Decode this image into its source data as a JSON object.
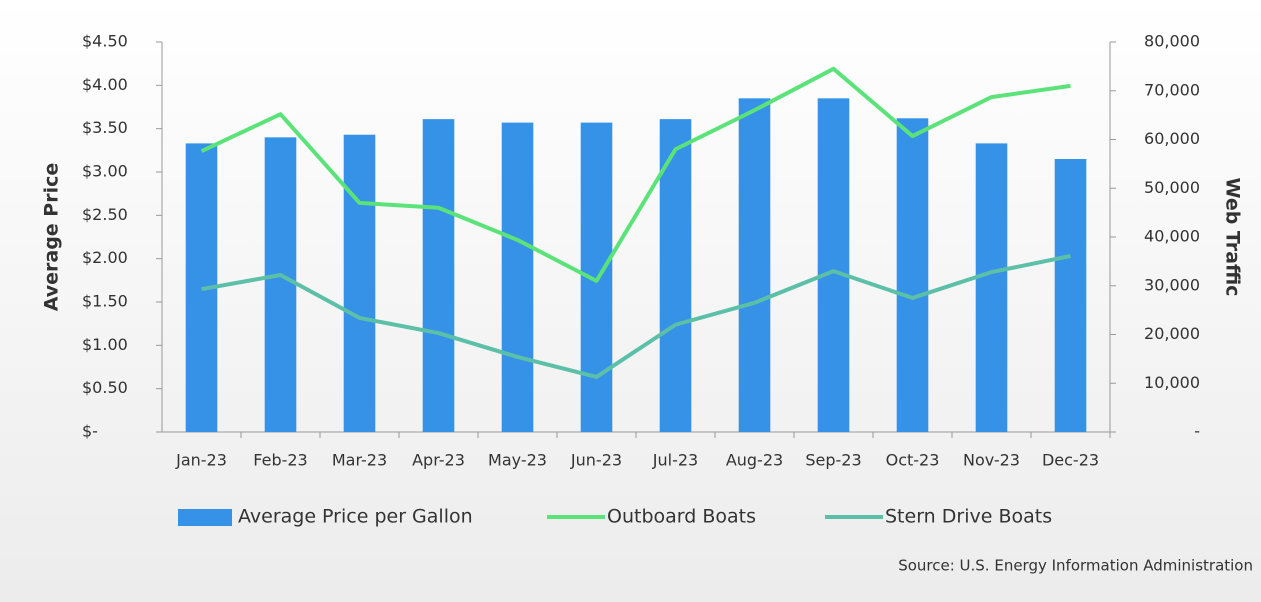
{
  "chart_data": {
    "type": "combo",
    "categories": [
      "Jan-23",
      "Feb-23",
      "Mar-23",
      "Apr-23",
      "May-23",
      "Jun-23",
      "Jul-23",
      "Aug-23",
      "Sep-23",
      "Oct-23",
      "Nov-23",
      "Dec-23"
    ],
    "series": [
      {
        "name": "Average Price per Gallon",
        "type": "bar",
        "color": "#3592e6",
        "axis": "y",
        "values": [
          3.33,
          3.4,
          3.43,
          3.61,
          3.57,
          3.57,
          3.61,
          3.85,
          3.85,
          3.62,
          3.33,
          3.15
        ]
      },
      {
        "name": "Outboard Boats",
        "type": "line",
        "color": "#5be37a",
        "axis": "y2",
        "values": [
          57600,
          65200,
          47000,
          46000,
          39400,
          31000,
          58000,
          66000,
          74500,
          60700,
          68700,
          71000
        ]
      },
      {
        "name": "Stern Drive Boats",
        "type": "line",
        "color": "#5cbfa8",
        "axis": "y2",
        "values": [
          29300,
          32200,
          23400,
          20300,
          15400,
          11300,
          22000,
          26500,
          33000,
          27500,
          32800,
          36100
        ]
      }
    ],
    "ylabel": "Average Price",
    "y2label": "Web Traffic",
    "ylim": [
      0,
      4.5
    ],
    "yticks": [
      {
        "value": 0,
        "label": "$-"
      },
      {
        "value": 0.5,
        "label": "$0.50"
      },
      {
        "value": 1,
        "label": "$1.00"
      },
      {
        "value": 1.5,
        "label": "$1.50"
      },
      {
        "value": 2,
        "label": "$2.00"
      },
      {
        "value": 2.5,
        "label": "$2.50"
      },
      {
        "value": 3,
        "label": "$3.00"
      },
      {
        "value": 3.5,
        "label": "$3.50"
      },
      {
        "value": 4,
        "label": "$4.00"
      },
      {
        "value": 4.5,
        "label": "$4.50"
      }
    ],
    "y2lim": [
      0,
      80000
    ],
    "y2ticks": [
      {
        "value": 0,
        "label": "-"
      },
      {
        "value": 10000,
        "label": "10,000"
      },
      {
        "value": 20000,
        "label": "20,000"
      },
      {
        "value": 30000,
        "label": "30,000"
      },
      {
        "value": 40000,
        "label": "40,000"
      },
      {
        "value": 50000,
        "label": "50,000"
      },
      {
        "value": 60000,
        "label": "60,000"
      },
      {
        "value": 70000,
        "label": "70,000"
      },
      {
        "value": 80000,
        "label": "80,000"
      }
    ],
    "source": "Source: U.S. Energy Information Administration",
    "legend": "bottom"
  }
}
